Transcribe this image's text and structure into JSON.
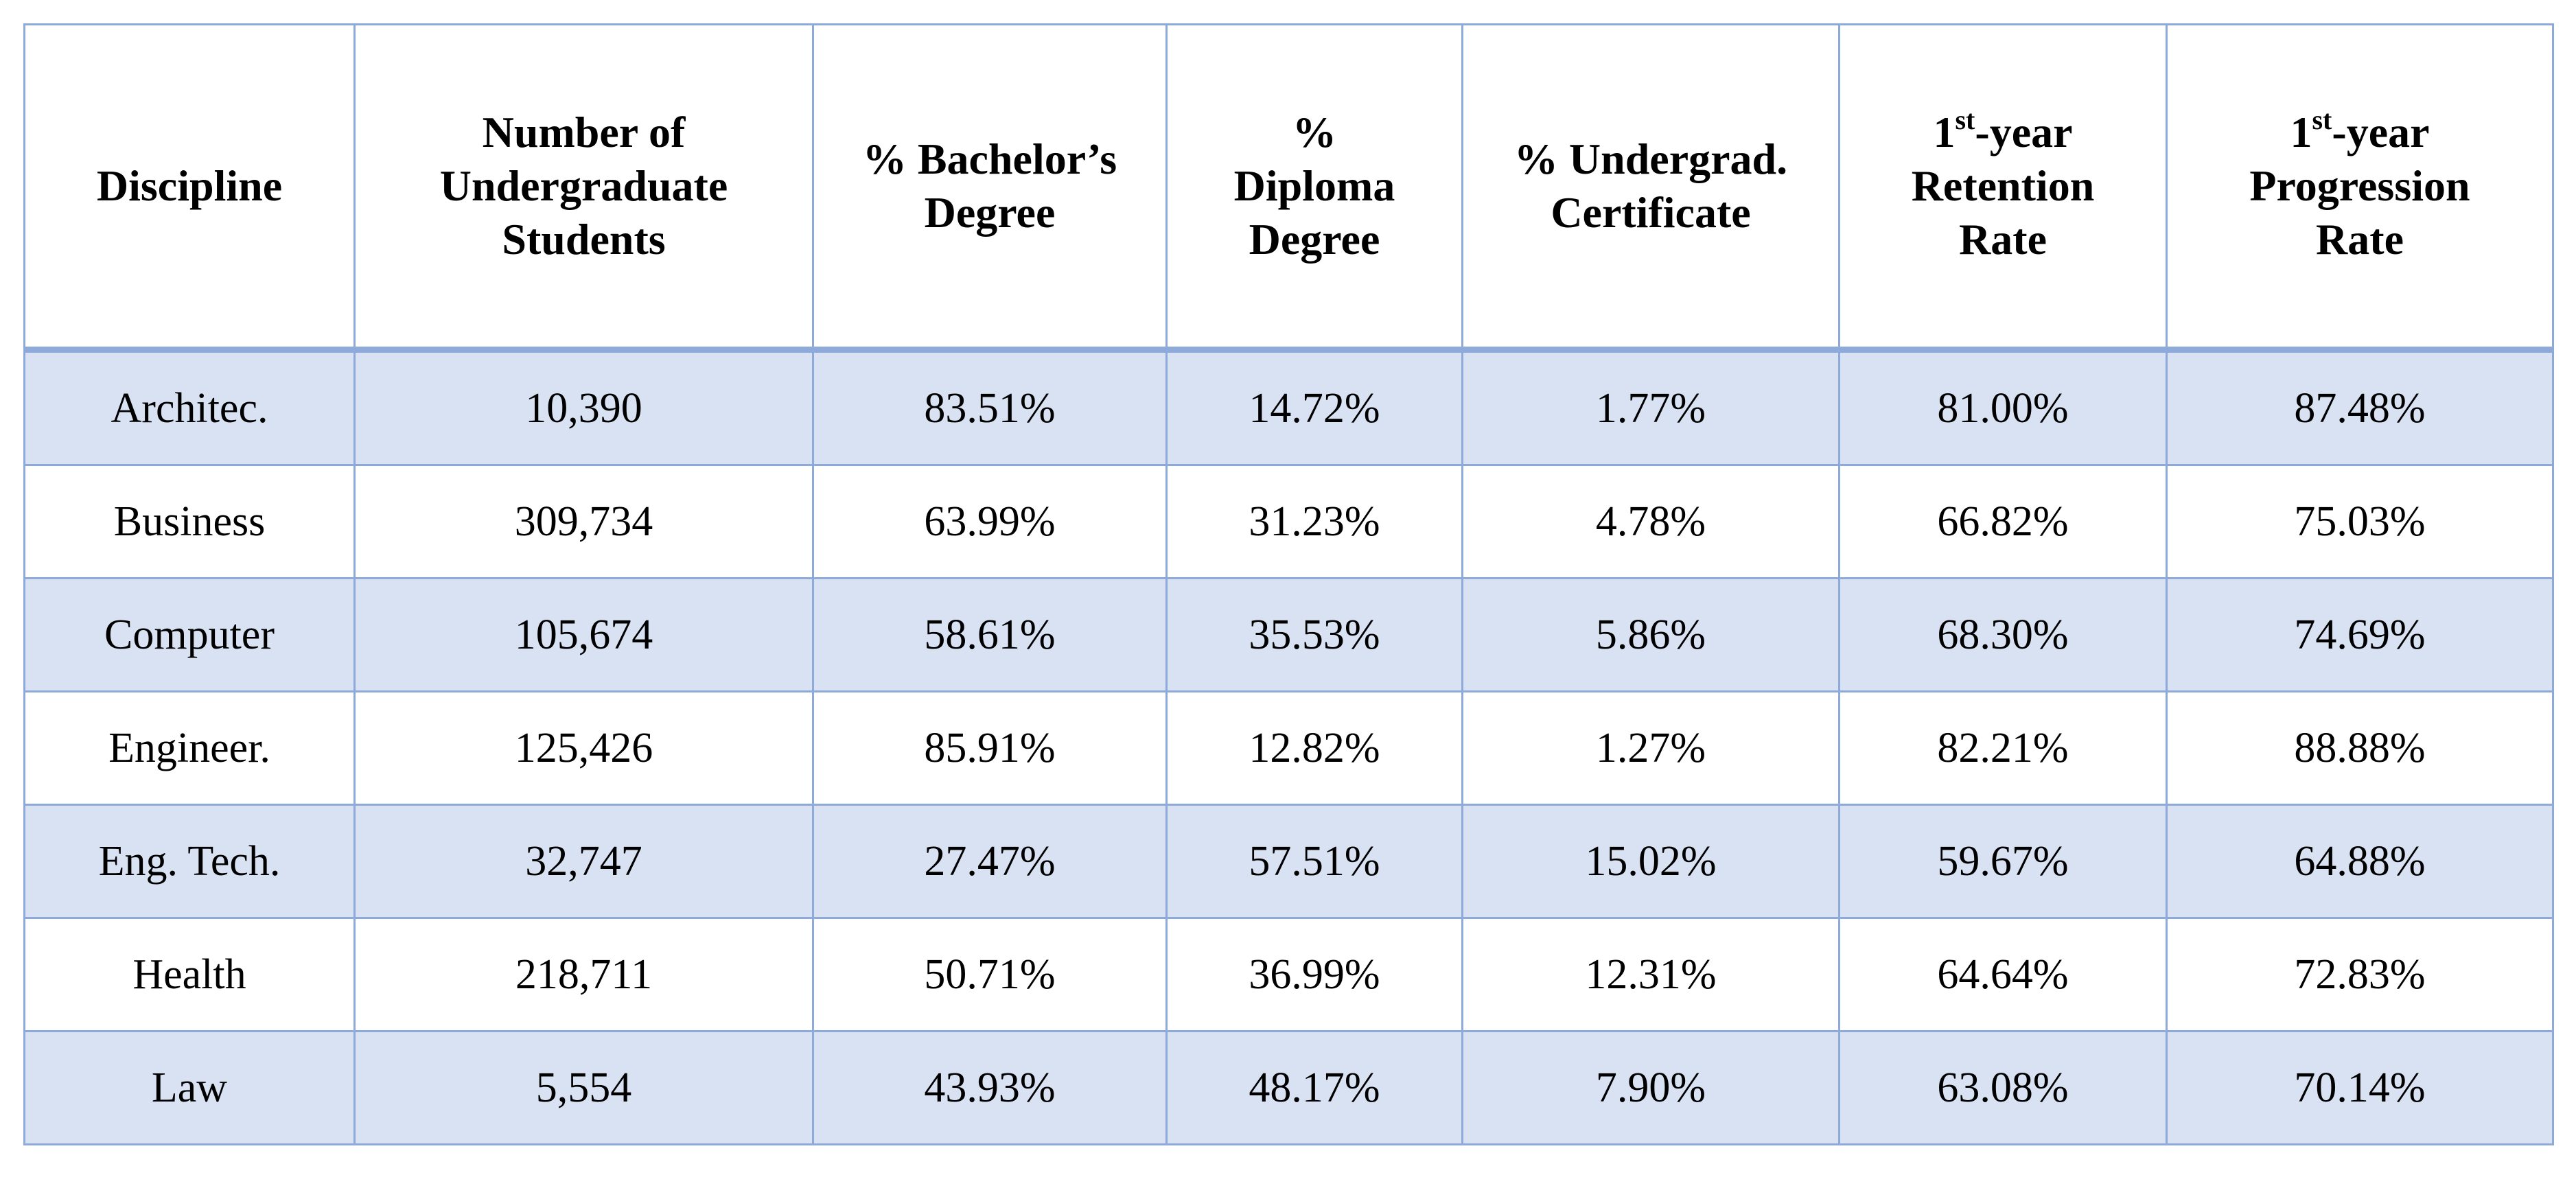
{
  "table": {
    "header": {
      "discipline": [
        "Discipline"
      ],
      "students": [
        "Number of",
        "Undergraduate",
        "Students"
      ],
      "bachelors": [
        "% Bachelor’s",
        "Degree"
      ],
      "diploma": [
        "%",
        "Diploma",
        "Degree"
      ],
      "certificate": [
        "% Undergrad.",
        "Certificate"
      ],
      "retention": {
        "num": "1",
        "sup": "st",
        "rest": "-year",
        "lines": [
          "Retention",
          "Rate"
        ]
      },
      "progression": {
        "num": "1",
        "sup": "st",
        "rest": "-year",
        "lines": [
          "Progression",
          "Rate"
        ]
      }
    },
    "rows": [
      [
        "Architec.",
        "10,390",
        "83.51%",
        "14.72%",
        "1.77%",
        "81.00%",
        "87.48%"
      ],
      [
        "Business",
        "309,734",
        "63.99%",
        "31.23%",
        "4.78%",
        "66.82%",
        "75.03%"
      ],
      [
        "Computer",
        "105,674",
        "58.61%",
        "35.53%",
        "5.86%",
        "68.30%",
        "74.69%"
      ],
      [
        "Engineer.",
        "125,426",
        "85.91%",
        "12.82%",
        "1.27%",
        "82.21%",
        "88.88%"
      ],
      [
        "Eng. Tech.",
        "32,747",
        "27.47%",
        "57.51%",
        "15.02%",
        "59.67%",
        "64.88%"
      ],
      [
        "Health",
        "218,711",
        "50.71%",
        "36.99%",
        "12.31%",
        "64.64%",
        "72.83%"
      ],
      [
        "Law",
        "5,554",
        "43.93%",
        "48.17%",
        "7.90%",
        "63.08%",
        "70.14%"
      ]
    ]
  },
  "colors": {
    "border": "#8eaadb",
    "shaded_row": "#d9e2f3",
    "plain_row": "#ffffff"
  }
}
